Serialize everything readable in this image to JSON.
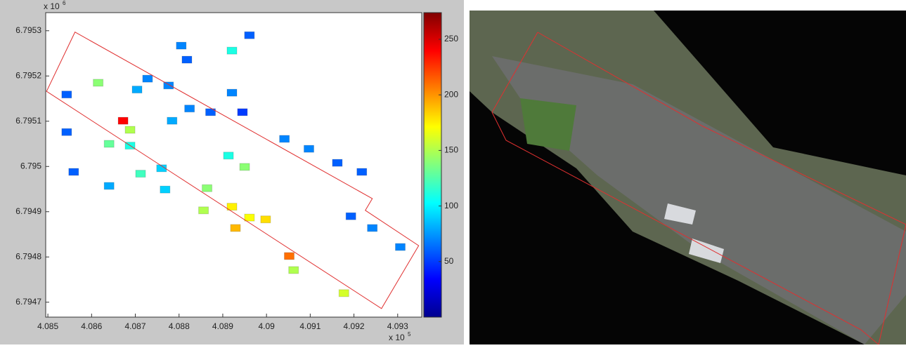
{
  "chart_data": {
    "type": "scatter",
    "xlim": [
      408495,
      409355
    ],
    "ylim": [
      6794667,
      6795340
    ],
    "xticks": [
      {
        "value": 408500,
        "label": "4.085"
      },
      {
        "value": 408600,
        "label": "4.086"
      },
      {
        "value": 408700,
        "label": "4.087"
      },
      {
        "value": 408800,
        "label": "4.088"
      },
      {
        "value": 408900,
        "label": "4.089"
      },
      {
        "value": 409000,
        "label": "4.09"
      },
      {
        "value": 409100,
        "label": "4.091"
      },
      {
        "value": 409200,
        "label": "4.092"
      },
      {
        "value": 409300,
        "label": "4.093"
      }
    ],
    "yticks": [
      {
        "value": 6794700,
        "label": "6.7947"
      },
      {
        "value": 6794800,
        "label": "6.7948"
      },
      {
        "value": 6794900,
        "label": "6.7949"
      },
      {
        "value": 6795000,
        "label": "6.795"
      },
      {
        "value": 6795100,
        "label": "6.7951"
      },
      {
        "value": 6795200,
        "label": "6.7952"
      },
      {
        "value": 6795300,
        "label": "6.7953"
      }
    ],
    "x_multiplier": {
      "base": "x 10",
      "exponent": 5
    },
    "y_multiplier": {
      "base": "x 10",
      "exponent": 6
    },
    "clim": [
      0,
      274
    ],
    "cticks": [
      50,
      100,
      150,
      200,
      250
    ],
    "colormap": "jet",
    "boundary_color": "#e03030",
    "boundary_x": [
      408562,
      409242,
      409226,
      409348,
      409263,
      408497
    ],
    "boundary_y": [
      6795297,
      6794929,
      6794903,
      6794825,
      6794686,
      6795166
    ],
    "x": [
      408805,
      408921,
      408961,
      408818,
      408615,
      408543,
      408704,
      408728,
      408776,
      408921,
      408945,
      408872,
      408672,
      408688,
      408784,
      408824,
      408543,
      408640,
      408688,
      408913,
      408950,
      409041,
      409097,
      409162,
      409218,
      408640,
      408712,
      408768,
      408864,
      408856,
      408921,
      408929,
      408961,
      408998,
      409052,
      409062,
      409177,
      409193,
      409242,
      409306,
      408559,
      408760
    ],
    "y": [
      6795267,
      6795256,
      6795290,
      6795236,
      6795185,
      6795159,
      6795170,
      6795194,
      6795179,
      6795163,
      6795120,
      6795120,
      6795101,
      6795081,
      6795101,
      6795128,
      6795076,
      6795050,
      6795046,
      6795024,
      6794999,
      6795061,
      6795039,
      6795008,
      6794988,
      6794957,
      6794984,
      6794949,
      6794952,
      6794903,
      6794911,
      6794864,
      6794887,
      6794883,
      6794802,
      6794771,
      6794720,
      6794890,
      6794864,
      6794822,
      6794988,
      6794996
    ],
    "values": [
      70,
      110,
      60,
      60,
      140,
      60,
      80,
      70,
      70,
      70,
      50,
      60,
      240,
      150,
      80,
      70,
      60,
      130,
      110,
      110,
      140,
      70,
      70,
      60,
      60,
      80,
      120,
      90,
      140,
      150,
      175,
      190,
      170,
      180,
      210,
      150,
      160,
      60,
      70,
      70,
      60,
      90
    ]
  }
}
